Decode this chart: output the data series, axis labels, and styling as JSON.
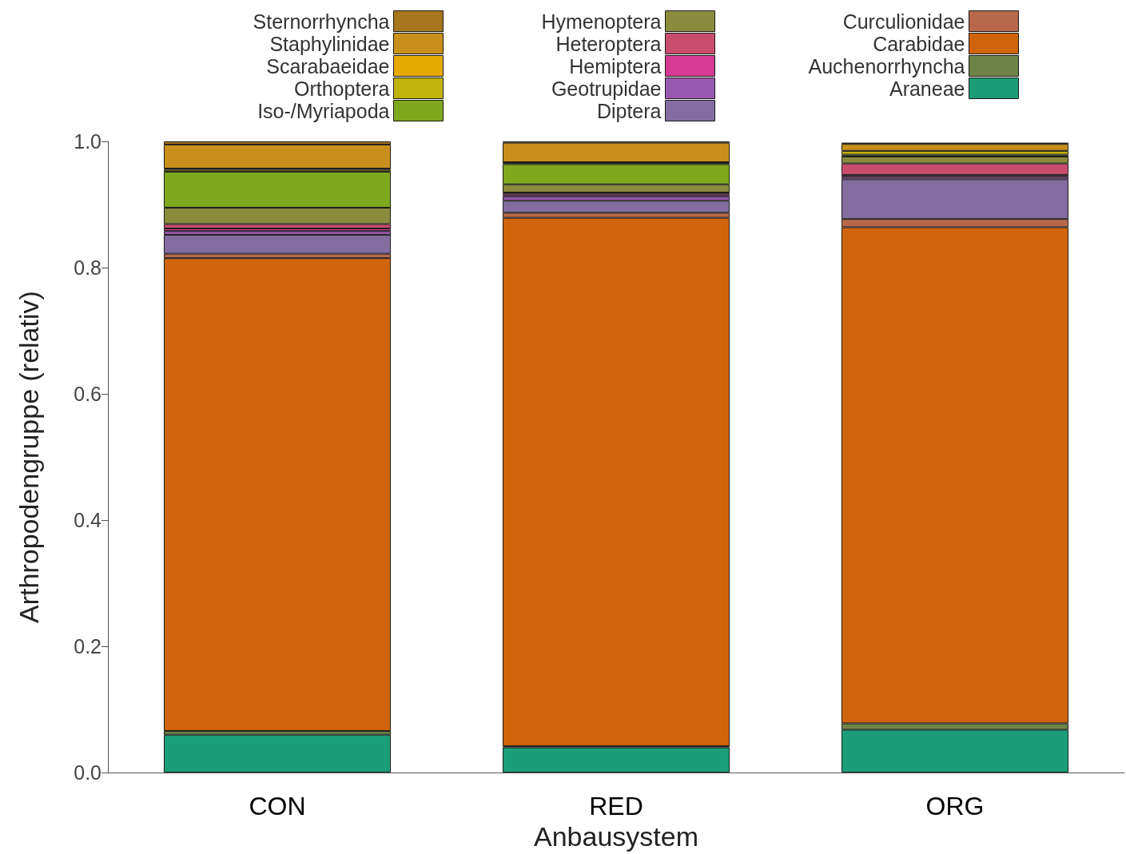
{
  "chart_data": {
    "type": "bar",
    "stacked": true,
    "xlabel": "Anbausystem",
    "ylabel": "Arthropodengruppe (relativ)",
    "categories": [
      "CON",
      "RED",
      "ORG"
    ],
    "series": [
      {
        "name": "Araneae",
        "color": "#1b9e77",
        "values": [
          0.06,
          0.04,
          0.068
        ]
      },
      {
        "name": "Auchenorrhyncha",
        "color": "#6e8446",
        "values": [
          0.006,
          0.002,
          0.01
        ]
      },
      {
        "name": "Carabidae",
        "color": "#d0640c",
        "values": [
          0.749,
          0.837,
          0.786
        ]
      },
      {
        "name": "Curculionidae",
        "color": "#b8684b",
        "values": [
          0.007,
          0.008,
          0.013
        ]
      },
      {
        "name": "Diptera",
        "color": "#836da0",
        "values": [
          0.03,
          0.019,
          0.063
        ]
      },
      {
        "name": "Geotrupidae",
        "color": "#9a59b0",
        "values": [
          0.006,
          0.007,
          0.004
        ]
      },
      {
        "name": "Hemiptera",
        "color": "#d63a94",
        "values": [
          0.004,
          0.003,
          0.003
        ]
      },
      {
        "name": "Heteroptera",
        "color": "#c94d6e",
        "values": [
          0.007,
          0.003,
          0.018
        ]
      },
      {
        "name": "Hymenoptera",
        "color": "#8b8b3e",
        "values": [
          0.026,
          0.013,
          0.011
        ]
      },
      {
        "name": "Iso-/Myriapoda",
        "color": "#7fa81e",
        "values": [
          0.057,
          0.032,
          0.003
        ]
      },
      {
        "name": "Orthoptera",
        "color": "#c2b20c",
        "values": [
          0.003,
          0.002,
          0.006
        ]
      },
      {
        "name": "Scarabaeidae",
        "color": "#e6ab02",
        "values": [
          0.002,
          0.001,
          null
        ]
      },
      {
        "name": "Staphylinidae",
        "color": "#c8901a",
        "values": [
          0.038,
          0.031,
          0.011
        ]
      },
      {
        "name": "Sternorrhyncha",
        "color": "#a6761d",
        "values": [
          0.005,
          0.002,
          0.002
        ]
      }
    ],
    "ylim": [
      0,
      1
    ],
    "yticks": [
      {
        "value": 0,
        "label": "0.0"
      },
      0.2,
      0.4,
      0.6,
      0.8,
      {
        "value": 1,
        "label": "1.0"
      }
    ],
    "legend": "top",
    "grid": false
  }
}
